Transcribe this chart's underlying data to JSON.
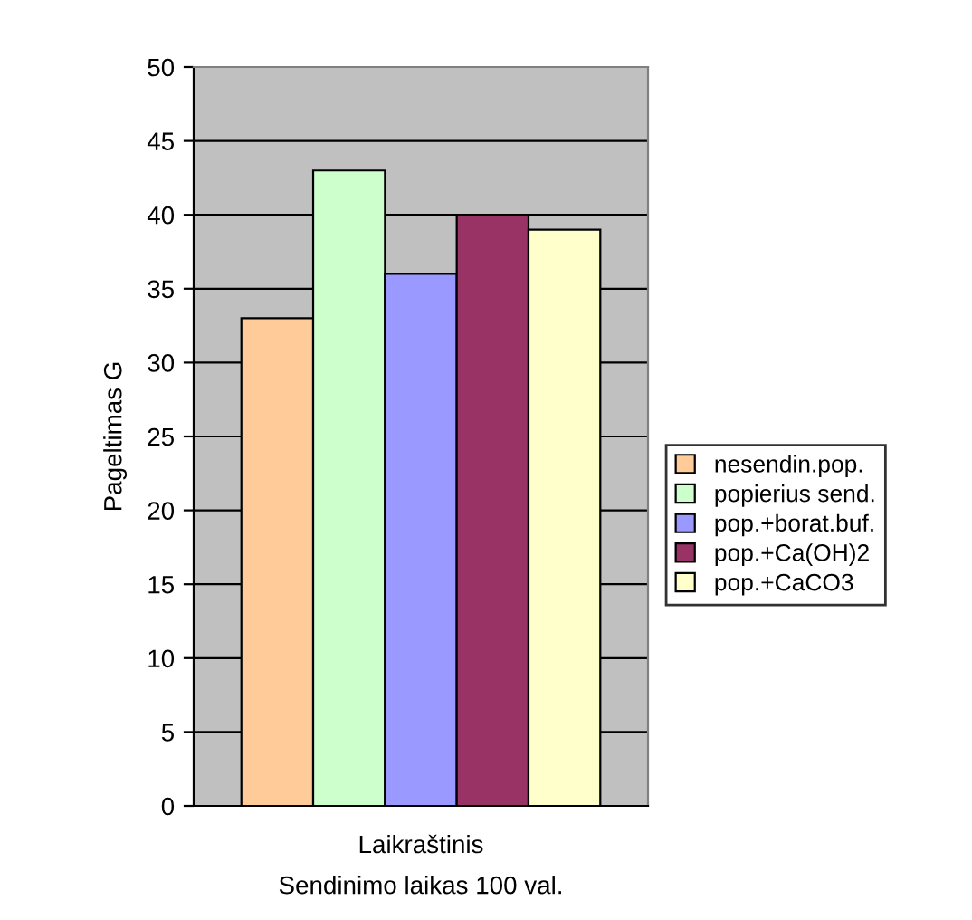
{
  "chart_data": {
    "type": "bar",
    "xlabel": "Laikraštinis",
    "ylabel": "Pageltimas G",
    "annotations": [
      "Sendinimo laikas 100 val."
    ],
    "categories": [
      null
    ],
    "series": [
      {
        "name": "nesendin.pop.",
        "color": "#ffcc99",
        "values": [
          33
        ]
      },
      {
        "name": "popierius send.",
        "color": "#ccffcc",
        "values": [
          43
        ]
      },
      {
        "name": "pop.+borat.buf.",
        "color": "#9999ff",
        "values": [
          36
        ]
      },
      {
        "name": "pop.+Ca(OH)2",
        "color": "#993366",
        "values": [
          40
        ]
      },
      {
        "name": "pop.+CaCO3",
        "color": "#ffffcc",
        "values": [
          39
        ]
      }
    ],
    "ylim": [
      0,
      50
    ],
    "yticks": [
      0,
      5,
      10,
      15,
      20,
      25,
      30,
      35,
      40,
      45,
      50
    ],
    "grid": "y",
    "legend": "right"
  }
}
